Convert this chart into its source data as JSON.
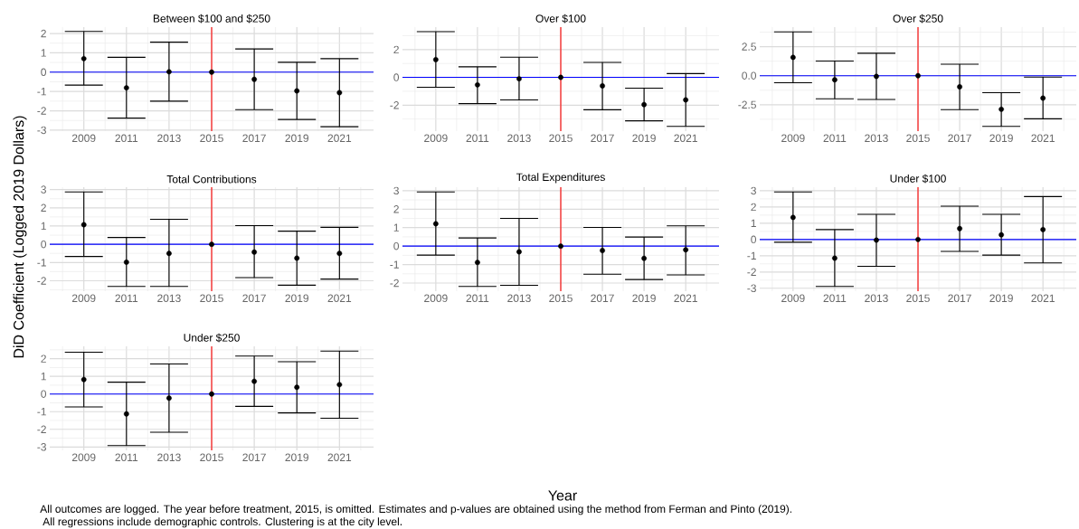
{
  "chart_data": [
    {
      "type": "scatter",
      "title": "Between $100 and $250",
      "x": [
        2009,
        2011,
        2013,
        2015,
        2017,
        2019,
        2021
      ],
      "values": [
        0.7,
        -0.81,
        0.02,
        0,
        -0.37,
        -0.97,
        -1.06
      ],
      "errors": [
        [
          -0.67,
          2.11
        ],
        [
          -2.38,
          0.77
        ],
        [
          -1.5,
          1.55
        ],
        null,
        [
          -1.94,
          1.2
        ],
        [
          -2.45,
          0.51
        ],
        [
          -2.82,
          0.7
        ]
      ],
      "color": "#000000",
      "grid": true,
      "xlim": [
        2007.4,
        2022.6
      ],
      "ylim": [
        -3.05,
        2.33
      ],
      "xticks": [
        2009,
        2011,
        2013,
        2015,
        2017,
        2019,
        2021
      ],
      "yticks": [
        -3,
        -2,
        -1,
        0,
        1,
        2
      ],
      "ref_lines": [
        {
          "axis": "y",
          "value": 0,
          "color": "#0000ff"
        },
        {
          "axis": "x",
          "value": 2015,
          "color": "#ff0000"
        }
      ]
    },
    {
      "type": "scatter",
      "title": "Over $100",
      "x": [
        2009,
        2011,
        2013,
        2015,
        2017,
        2019,
        2021
      ],
      "values": [
        1.28,
        -0.54,
        -0.1,
        0,
        -0.61,
        -1.96,
        -1.62
      ],
      "errors": [
        [
          -0.71,
          3.29
        ],
        [
          -1.89,
          0.76
        ],
        [
          -1.62,
          1.45
        ],
        null,
        [
          -2.33,
          1.08
        ],
        [
          -3.13,
          -0.78
        ],
        [
          -3.53,
          0.27
        ]
      ],
      "color": "#000000",
      "grid": true,
      "xlim": [
        2007.4,
        2022.6
      ],
      "ylim": [
        -3.87,
        3.62
      ],
      "xticks": [
        2009,
        2011,
        2013,
        2015,
        2017,
        2019,
        2021
      ],
      "yticks": [
        -2,
        0,
        2
      ],
      "ref_lines": [
        {
          "axis": "y",
          "value": 0,
          "color": "#0000ff"
        },
        {
          "axis": "x",
          "value": 2015,
          "color": "#ff0000"
        }
      ]
    },
    {
      "type": "scatter",
      "title": "Over $250",
      "x": [
        2009,
        2011,
        2013,
        2015,
        2017,
        2019,
        2021
      ],
      "values": [
        1.58,
        -0.35,
        -0.06,
        0,
        -0.96,
        -2.89,
        -1.93
      ],
      "errors": [
        [
          -0.61,
          3.77
        ],
        [
          -1.99,
          1.26
        ],
        [
          -2.05,
          1.93
        ],
        null,
        [
          -2.92,
          0.99
        ],
        [
          -4.36,
          -1.46
        ],
        [
          -3.71,
          -0.12
        ]
      ],
      "color": "#000000",
      "grid": true,
      "xlim": [
        2007.4,
        2022.6
      ],
      "ylim": [
        -4.77,
        4.18
      ],
      "xticks": [
        2009,
        2011,
        2013,
        2015,
        2017,
        2019,
        2021
      ],
      "yticks": [
        -2.5,
        {
          "value": 0,
          "label": "0.0"
        },
        2.5
      ],
      "ref_lines": [
        {
          "axis": "y",
          "value": 0,
          "color": "#0000ff"
        },
        {
          "axis": "x",
          "value": 2015,
          "color": "#ff0000"
        }
      ]
    },
    {
      "type": "scatter",
      "title": "Total Contributions",
      "ylabel": "DiD Coefficient (Logged 2019 Dollars)",
      "x": [
        2009,
        2011,
        2013,
        2015,
        2017,
        2019,
        2021
      ],
      "values": [
        1.07,
        -0.98,
        -0.5,
        0,
        -0.43,
        -0.76,
        -0.5
      ],
      "errors": [
        [
          -0.67,
          2.87
        ],
        [
          -2.31,
          0.37
        ],
        [
          -2.31,
          1.37
        ],
        null,
        [
          -1.83,
          1.02
        ],
        [
          -2.24,
          0.72
        ],
        [
          -1.91,
          0.93
        ]
      ],
      "color": "#000000",
      "grid": true,
      "xlim": [
        2007.4,
        2022.6
      ],
      "ylim": [
        -2.57,
        3.13
      ],
      "xticks": [
        2009,
        2011,
        2013,
        2015,
        2017,
        2019,
        2021
      ],
      "yticks": [
        -2,
        -1,
        0,
        1,
        2,
        3
      ],
      "ref_lines": [
        {
          "axis": "y",
          "value": 0,
          "color": "#0000ff"
        },
        {
          "axis": "x",
          "value": 2015,
          "color": "#ff0000"
        }
      ]
    },
    {
      "type": "scatter",
      "title": "Total Expenditures",
      "x": [
        2009,
        2011,
        2013,
        2015,
        2017,
        2019,
        2021
      ],
      "values": [
        1.21,
        -0.88,
        -0.31,
        0,
        -0.24,
        -0.66,
        -0.2
      ],
      "errors": [
        [
          -0.49,
          2.93
        ],
        [
          -2.18,
          0.44
        ],
        [
          -2.12,
          1.5
        ],
        null,
        [
          -1.52,
          1.01
        ],
        [
          -1.81,
          0.49
        ],
        [
          -1.56,
          1.1
        ]
      ],
      "color": "#000000",
      "grid": true,
      "xlim": [
        2007.4,
        2022.6
      ],
      "ylim": [
        -2.44,
        3.19
      ],
      "xticks": [
        2009,
        2011,
        2013,
        2015,
        2017,
        2019,
        2021
      ],
      "yticks": [
        -2,
        -1,
        0,
        1,
        2,
        3
      ],
      "ref_lines": [
        {
          "axis": "y",
          "value": 0,
          "color": "#0000ff"
        },
        {
          "axis": "x",
          "value": 2015,
          "color": "#ff0000"
        }
      ]
    },
    {
      "type": "scatter",
      "title": "Under $100",
      "x": [
        2009,
        2011,
        2013,
        2015,
        2017,
        2019,
        2021
      ],
      "values": [
        1.36,
        -1.15,
        -0.04,
        0,
        0.67,
        0.29,
        0.61
      ],
      "errors": [
        [
          -0.17,
          2.93
        ],
        [
          -2.89,
          0.61
        ],
        [
          -1.65,
          1.55
        ],
        null,
        [
          -0.73,
          2.05
        ],
        [
          -0.96,
          1.55
        ],
        [
          -1.44,
          2.64
        ]
      ],
      "color": "#000000",
      "grid": true,
      "xlim": [
        2007.4,
        2022.6
      ],
      "ylim": [
        -3.18,
        3.22
      ],
      "xticks": [
        2009,
        2011,
        2013,
        2015,
        2017,
        2019,
        2021
      ],
      "yticks": [
        -3,
        -2,
        -1,
        0,
        1,
        2,
        3
      ],
      "ref_lines": [
        {
          "axis": "y",
          "value": 0,
          "color": "#0000ff"
        },
        {
          "axis": "x",
          "value": 2015,
          "color": "#ff0000"
        }
      ]
    },
    {
      "type": "scatter",
      "title": "Under $250",
      "x": [
        2009,
        2011,
        2013,
        2015,
        2017,
        2019,
        2021
      ],
      "values": [
        0.82,
        -1.13,
        -0.23,
        0,
        0.72,
        0.38,
        0.53
      ],
      "errors": [
        [
          -0.73,
          2.37
        ],
        [
          -2.92,
          0.67
        ],
        [
          -2.17,
          1.7
        ],
        null,
        [
          -0.7,
          2.15
        ],
        [
          -1.07,
          1.83
        ],
        [
          -1.37,
          2.43
        ]
      ],
      "color": "#000000",
      "grid": true,
      "xlim": [
        2007.4,
        2022.6
      ],
      "ylim": [
        -3.19,
        2.7
      ],
      "xticks": [
        2009,
        2011,
        2013,
        2015,
        2017,
        2019,
        2021
      ],
      "yticks": [
        -3,
        -2,
        -1,
        0,
        1,
        2
      ],
      "ref_lines": [
        {
          "axis": "y",
          "value": 0,
          "color": "#0000ff"
        },
        {
          "axis": "x",
          "value": 2015,
          "color": "#ff0000"
        }
      ],
      "annotations": [
        "Year",
        "All outcomes are logged. The year before treatment, 2015, is omitted. Estimates and p-values are obtained using the method from Ferman and Pinto (2019).",
        "All regressions include demographic controls.  Clustering is at the city level."
      ]
    }
  ]
}
